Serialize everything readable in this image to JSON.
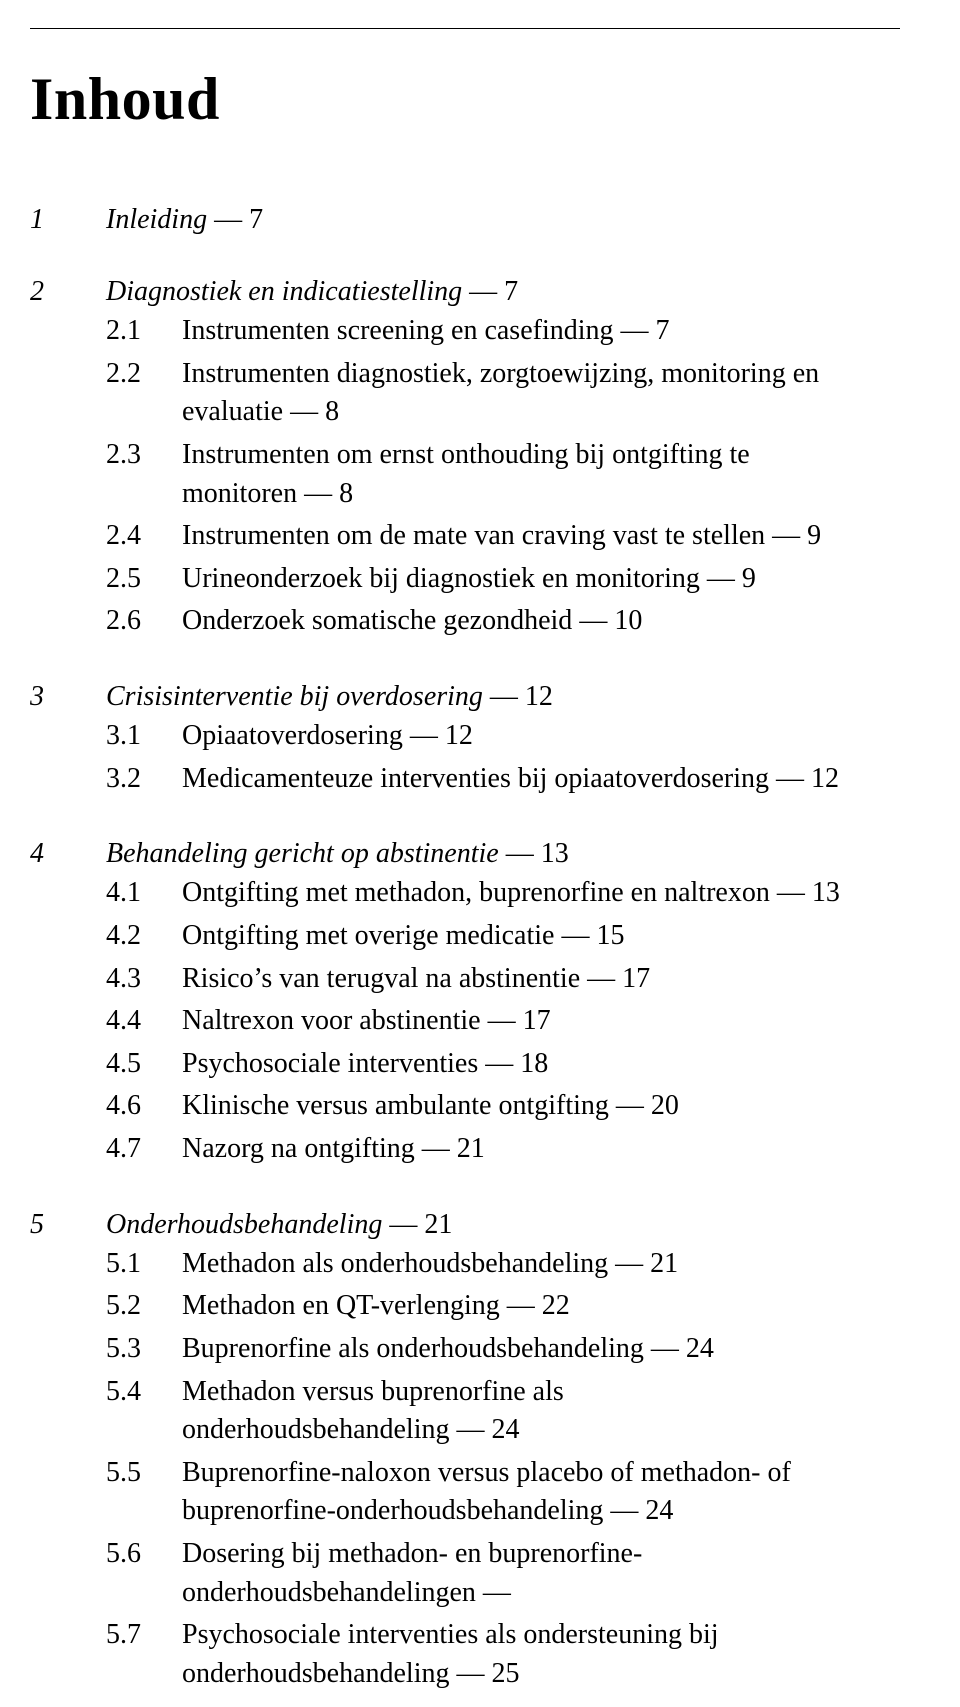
{
  "title": "Inhoud",
  "dash": " — ",
  "chapters": [
    {
      "num": "1",
      "label": "Inleiding",
      "page": "7",
      "sections": []
    },
    {
      "num": "2",
      "label": "Diagnostiek en indicatiestelling",
      "page": "7",
      "sections": [
        {
          "num": "2.1",
          "text": "Instrumenten screening en casefinding",
          "page": "7"
        },
        {
          "num": "2.2",
          "text": "Instrumenten diagnostiek, zorgtoewijzing, monitoring en",
          "cont": "evaluatie",
          "page": "8"
        },
        {
          "num": "2.3",
          "text": "Instrumenten om ernst onthouding bij ontgifting te",
          "cont": "monitoren",
          "page": "8"
        },
        {
          "num": "2.4",
          "text": "Instrumenten om de mate van craving vast te stellen",
          "page": "9"
        },
        {
          "num": "2.5",
          "text": "Urineonderzoek bij diagnostiek en monitoring",
          "page": "9"
        },
        {
          "num": "2.6",
          "text": "Onderzoek somatische gezondheid",
          "page": "10"
        }
      ]
    },
    {
      "num": "3",
      "label": "Crisisinterventie bij overdosering",
      "page": "12",
      "sections": [
        {
          "num": "3.1",
          "text": "Opiaatoverdosering",
          "page": "12"
        },
        {
          "num": "3.2",
          "text": "Medicamenteuze interventies bij opiaatoverdosering",
          "page": "12"
        }
      ]
    },
    {
      "num": "4",
      "label": "Behandeling gericht op abstinentie",
      "page": "13",
      "sections": [
        {
          "num": "4.1",
          "text": "Ontgifting met methadon, buprenorfine en naltrexon",
          "page": "13"
        },
        {
          "num": "4.2",
          "text": "Ontgifting met overige medicatie",
          "page": "15"
        },
        {
          "num": "4.3",
          "text": "Risico’s van terugval na abstinentie",
          "page": "17"
        },
        {
          "num": "4.4",
          "text": "Naltrexon voor abstinentie",
          "page": "17"
        },
        {
          "num": "4.5",
          "text": "Psychosociale interventies",
          "page": "18"
        },
        {
          "num": "4.6",
          "text": "Klinische versus ambulante ontgifting",
          "page": "20"
        },
        {
          "num": "4.7",
          "text": "Nazorg na ontgifting",
          "page": "21"
        }
      ]
    },
    {
      "num": "5",
      "label": "Onderhoudsbehandeling",
      "page": "21",
      "sections": [
        {
          "num": "5.1",
          "text": "Methadon als onderhoudsbehandeling",
          "page": "21"
        },
        {
          "num": "5.2",
          "text": "Methadon en QT-verlenging",
          "page": "22"
        },
        {
          "num": "5.3",
          "text": "Buprenorfine als onderhoudsbehandeling",
          "page": "24"
        },
        {
          "num": "5.4",
          "text": "Methadon versus buprenorfine als",
          "cont": "onderhoudsbehandeling",
          "page": "24"
        },
        {
          "num": "5.5",
          "text": "Buprenorfine-naloxon versus placebo of methadon- of",
          "cont": "buprenorfine-onderhoudsbehandeling",
          "page": "24"
        },
        {
          "num": "5.6",
          "text": "Dosering bij methadon- en buprenorfine-",
          "cont": "onderhoudsbehandelingen",
          "page": ""
        },
        {
          "num": "5.7",
          "text": "Psychosociale interventies als ondersteuning bij",
          "cont": "onderhoudsbehandeling",
          "page": "25"
        }
      ]
    }
  ]
}
